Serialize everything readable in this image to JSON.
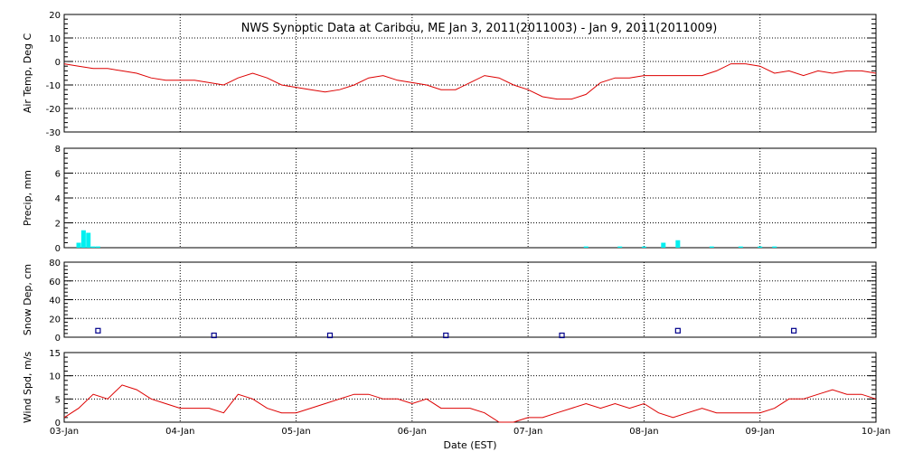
{
  "chart_data": [
    {
      "type": "line",
      "title": "NWS Synoptic Data at Caribou, ME   Jan  3, 2011(2011003) - Jan  9, 2011(2011009)",
      "ylabel": "Air Temp, Deg C",
      "ylim": [
        -30,
        20
      ],
      "yticks": [
        "20",
        "10",
        "0",
        "-10",
        "-20",
        "-30"
      ],
      "grid": true,
      "color": "#dd0000",
      "series": [
        {
          "x": [
            "2011-01-03T00:00",
            "2011-01-03T03:00",
            "2011-01-03T06:00",
            "2011-01-03T09:00",
            "2011-01-03T12:00",
            "2011-01-03T15:00",
            "2011-01-03T18:00",
            "2011-01-03T21:00",
            "2011-01-04T00:00",
            "2011-01-04T03:00",
            "2011-01-04T06:00",
            "2011-01-04T09:00",
            "2011-01-04T12:00",
            "2011-01-04T15:00",
            "2011-01-04T18:00",
            "2011-01-04T21:00",
            "2011-01-05T00:00",
            "2011-01-05T03:00",
            "2011-01-05T06:00",
            "2011-01-05T09:00",
            "2011-01-05T12:00",
            "2011-01-05T15:00",
            "2011-01-05T18:00",
            "2011-01-05T21:00",
            "2011-01-06T00:00",
            "2011-01-06T03:00",
            "2011-01-06T06:00",
            "2011-01-06T09:00",
            "2011-01-06T12:00",
            "2011-01-06T15:00",
            "2011-01-06T18:00",
            "2011-01-06T21:00",
            "2011-01-07T00:00",
            "2011-01-07T03:00",
            "2011-01-07T06:00",
            "2011-01-07T09:00",
            "2011-01-07T12:00",
            "2011-01-07T15:00",
            "2011-01-07T18:00",
            "2011-01-07T21:00",
            "2011-01-08T00:00",
            "2011-01-08T03:00",
            "2011-01-08T06:00",
            "2011-01-08T09:00",
            "2011-01-08T12:00",
            "2011-01-08T15:00",
            "2011-01-08T18:00",
            "2011-01-08T21:00",
            "2011-01-09T00:00",
            "2011-01-09T03:00",
            "2011-01-09T06:00",
            "2011-01-09T09:00",
            "2011-01-09T12:00",
            "2011-01-09T15:00",
            "2011-01-09T18:00",
            "2011-01-09T21:00",
            "2011-01-10T00:00"
          ],
          "values": [
            -1,
            -2,
            -3,
            -3,
            -4,
            -5,
            -7,
            -8,
            -8,
            -8,
            -9,
            -10,
            -7,
            -5,
            -7,
            -10,
            -11,
            -12,
            -13,
            -12,
            -10,
            -7,
            -6,
            -8,
            -9,
            -10,
            -12,
            -12,
            -9,
            -6,
            -7,
            -10,
            -12,
            -15,
            -16,
            -16,
            -14,
            -9,
            -7,
            -7,
            -6,
            -6,
            -6,
            -6,
            -6,
            -4,
            -1,
            -1,
            -2,
            -5,
            -4,
            -6,
            -4,
            -5,
            -4,
            -4,
            -5
          ]
        }
      ]
    },
    {
      "type": "bar",
      "ylabel": "Precip, mm",
      "ylim": [
        0,
        8
      ],
      "yticks": [
        "8",
        "6",
        "4",
        "2",
        "0"
      ],
      "grid": true,
      "color": "#00f0f0",
      "series": [
        {
          "x": [
            "2011-01-03T03:00",
            "2011-01-03T04:00",
            "2011-01-03T05:00",
            "2011-01-03T06:00",
            "2011-01-03T07:00",
            "2011-01-07T12:00",
            "2011-01-07T19:00",
            "2011-01-08T00:00",
            "2011-01-08T04:00",
            "2011-01-08T07:00",
            "2011-01-08T14:00",
            "2011-01-08T20:00",
            "2011-01-09T00:00",
            "2011-01-09T03:00"
          ],
          "values": [
            0.4,
            1.4,
            1.2,
            0.1,
            0.1,
            0.1,
            0.1,
            0.1,
            0.4,
            0.6,
            0.1,
            0.1,
            0.1,
            0.1
          ]
        }
      ]
    },
    {
      "type": "scatter",
      "ylabel": "Snow Dep, cm",
      "ylim": [
        0,
        80
      ],
      "yticks": [
        "80",
        "60",
        "40",
        "20",
        "0"
      ],
      "grid": true,
      "color": "#00008b",
      "series": [
        {
          "x": [
            "2011-01-03T07:00",
            "2011-01-04T07:00",
            "2011-01-05T07:00",
            "2011-01-06T07:00",
            "2011-01-07T07:00",
            "2011-01-08T07:00",
            "2011-01-09T07:00"
          ],
          "values": [
            5,
            0,
            0,
            0,
            0,
            5,
            5
          ]
        }
      ]
    },
    {
      "type": "line",
      "ylabel": "Wind Spd, m/s",
      "xlabel": "Date (EST)",
      "ylim": [
        0,
        15
      ],
      "yticks": [
        "15",
        "10",
        "5",
        "0"
      ],
      "xticks": [
        "03-Jan",
        "04-Jan",
        "05-Jan",
        "06-Jan",
        "07-Jan",
        "08-Jan",
        "09-Jan",
        "10-Jan"
      ],
      "grid": true,
      "color": "#dd0000",
      "series": [
        {
          "x": [
            "2011-01-03T00:00",
            "2011-01-03T03:00",
            "2011-01-03T06:00",
            "2011-01-03T09:00",
            "2011-01-03T12:00",
            "2011-01-03T15:00",
            "2011-01-03T18:00",
            "2011-01-03T21:00",
            "2011-01-04T00:00",
            "2011-01-04T03:00",
            "2011-01-04T06:00",
            "2011-01-04T09:00",
            "2011-01-04T12:00",
            "2011-01-04T15:00",
            "2011-01-04T18:00",
            "2011-01-04T21:00",
            "2011-01-05T00:00",
            "2011-01-05T03:00",
            "2011-01-05T06:00",
            "2011-01-05T09:00",
            "2011-01-05T12:00",
            "2011-01-05T15:00",
            "2011-01-05T18:00",
            "2011-01-05T21:00",
            "2011-01-06T00:00",
            "2011-01-06T03:00",
            "2011-01-06T06:00",
            "2011-01-06T09:00",
            "2011-01-06T12:00",
            "2011-01-06T15:00",
            "2011-01-06T18:00",
            "2011-01-06T21:00",
            "2011-01-07T00:00",
            "2011-01-07T03:00",
            "2011-01-07T06:00",
            "2011-01-07T09:00",
            "2011-01-07T12:00",
            "2011-01-07T15:00",
            "2011-01-07T18:00",
            "2011-01-07T21:00",
            "2011-01-08T00:00",
            "2011-01-08T03:00",
            "2011-01-08T06:00",
            "2011-01-08T09:00",
            "2011-01-08T12:00",
            "2011-01-08T15:00",
            "2011-01-08T18:00",
            "2011-01-08T21:00",
            "2011-01-09T00:00",
            "2011-01-09T03:00",
            "2011-01-09T06:00",
            "2011-01-09T09:00",
            "2011-01-09T12:00",
            "2011-01-09T15:00",
            "2011-01-09T18:00",
            "2011-01-09T21:00",
            "2011-01-10T00:00"
          ],
          "values": [
            1,
            3,
            6,
            5,
            8,
            7,
            5,
            4,
            3,
            3,
            3,
            2,
            6,
            5,
            3,
            2,
            2,
            3,
            4,
            5,
            6,
            6,
            5,
            5,
            4,
            5,
            3,
            3,
            3,
            2,
            0,
            0,
            1,
            1,
            2,
            3,
            4,
            3,
            4,
            3,
            4,
            2,
            1,
            2,
            3,
            2,
            2,
            2,
            2,
            3,
            5,
            5,
            6,
            7,
            6,
            6,
            5
          ]
        }
      ]
    }
  ]
}
